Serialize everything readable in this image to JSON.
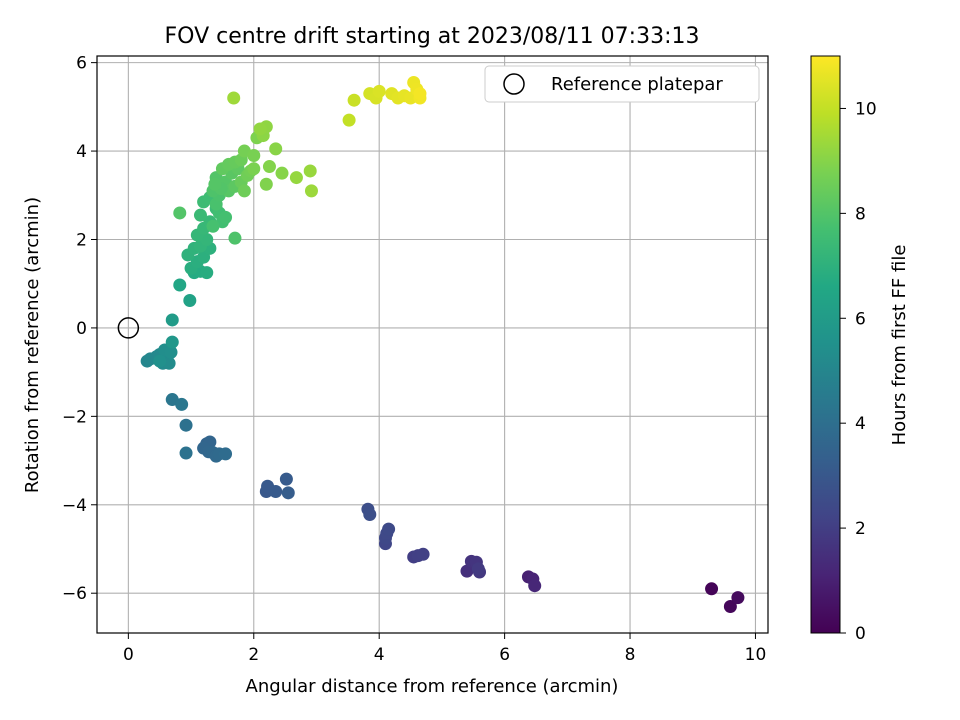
{
  "chart_data": {
    "type": "scatter",
    "title": "FOV centre drift starting at 2023/08/11 07:33:13",
    "xlabel": "Angular distance from reference (arcmin)",
    "ylabel": "Rotation from reference (arcmin)",
    "xlim": [
      -0.5,
      10.2
    ],
    "ylim": [
      -6.9,
      6.15
    ],
    "xticks": [
      0,
      2,
      4,
      6,
      8,
      10
    ],
    "yticks": [
      -6,
      -4,
      -2,
      0,
      2,
      4,
      6
    ],
    "grid": true,
    "legend": {
      "position": "top-right",
      "entries": [
        "Reference platepar"
      ]
    },
    "reference_point": {
      "x": 0,
      "y": 0,
      "name": "Reference platepar"
    },
    "colorbar": {
      "label": "Hours from first FF file",
      "range": [
        0,
        11
      ],
      "ticks": [
        0,
        2,
        4,
        6,
        8,
        10
      ],
      "colormap": "viridis"
    },
    "points": [
      [
        9.3,
        -5.9,
        0.1
      ],
      [
        9.6,
        -6.3,
        0.2
      ],
      [
        9.72,
        -6.1,
        0.3
      ],
      [
        6.38,
        -5.63,
        1.0
      ],
      [
        6.45,
        -5.68,
        1.1
      ],
      [
        6.48,
        -5.83,
        1.2
      ],
      [
        5.4,
        -5.5,
        1.5
      ],
      [
        5.47,
        -5.28,
        1.6
      ],
      [
        5.55,
        -5.3,
        1.7
      ],
      [
        5.6,
        -5.52,
        1.8
      ],
      [
        5.58,
        -5.45,
        1.85
      ],
      [
        4.55,
        -5.18,
        2.0
      ],
      [
        4.62,
        -5.15,
        2.05
      ],
      [
        4.7,
        -5.12,
        2.1
      ],
      [
        4.1,
        -4.88,
        2.3
      ],
      [
        4.1,
        -4.75,
        2.35
      ],
      [
        4.12,
        -4.65,
        2.4
      ],
      [
        4.15,
        -4.55,
        2.45
      ],
      [
        3.82,
        -4.1,
        2.6
      ],
      [
        3.85,
        -4.22,
        2.65
      ],
      [
        2.2,
        -3.7,
        3.0
      ],
      [
        2.22,
        -3.58,
        3.05
      ],
      [
        2.35,
        -3.7,
        3.1
      ],
      [
        2.52,
        -3.42,
        3.15
      ],
      [
        2.55,
        -3.73,
        3.2
      ],
      [
        1.25,
        -2.62,
        3.5
      ],
      [
        1.3,
        -2.58,
        3.55
      ],
      [
        1.2,
        -2.72,
        3.6
      ],
      [
        1.28,
        -2.8,
        3.65
      ],
      [
        1.35,
        -2.82,
        3.7
      ],
      [
        1.4,
        -2.9,
        3.75
      ],
      [
        1.45,
        -2.85,
        3.8
      ],
      [
        1.55,
        -2.85,
        3.85
      ],
      [
        0.92,
        -2.2,
        4.1
      ],
      [
        0.92,
        -2.83,
        4.15
      ],
      [
        0.7,
        -1.62,
        4.3
      ],
      [
        0.85,
        -1.73,
        4.35
      ],
      [
        0.3,
        -0.75,
        5.0
      ],
      [
        0.35,
        -0.7,
        5.05
      ],
      [
        0.45,
        -0.65,
        5.1
      ],
      [
        0.5,
        -0.6,
        5.15
      ],
      [
        0.55,
        -0.8,
        5.2
      ],
      [
        0.62,
        -0.72,
        5.25
      ],
      [
        0.65,
        -0.8,
        5.3
      ],
      [
        0.58,
        -0.5,
        5.35
      ],
      [
        0.68,
        -0.55,
        5.4
      ],
      [
        0.5,
        -0.75,
        5.45
      ],
      [
        0.7,
        -0.32,
        5.8
      ],
      [
        0.7,
        0.18,
        6.0
      ],
      [
        0.98,
        0.62,
        6.3
      ],
      [
        0.82,
        0.97,
        6.5
      ],
      [
        1.05,
        1.25,
        6.7
      ],
      [
        1.15,
        1.28,
        6.75
      ],
      [
        1.25,
        1.25,
        6.8
      ],
      [
        1.0,
        1.35,
        6.85
      ],
      [
        1.1,
        1.5,
        6.9
      ],
      [
        1.2,
        1.6,
        6.95
      ],
      [
        1.3,
        1.8,
        7.0
      ],
      [
        0.95,
        1.65,
        7.05
      ],
      [
        1.05,
        1.8,
        7.1
      ],
      [
        1.15,
        1.85,
        7.15
      ],
      [
        1.25,
        2.0,
        7.2
      ],
      [
        1.1,
        2.1,
        7.25
      ],
      [
        1.2,
        2.25,
        7.3
      ],
      [
        1.3,
        2.4,
        7.35
      ],
      [
        1.15,
        2.55,
        7.4
      ],
      [
        1.4,
        2.7,
        7.45
      ],
      [
        1.2,
        2.85,
        7.5
      ],
      [
        1.3,
        2.95,
        7.55
      ],
      [
        1.45,
        2.6,
        7.6
      ],
      [
        1.5,
        2.4,
        7.65
      ],
      [
        1.55,
        2.5,
        7.7
      ],
      [
        1.35,
        2.3,
        7.75
      ],
      [
        1.4,
        2.8,
        7.8
      ],
      [
        1.45,
        3.0,
        7.85
      ],
      [
        1.35,
        3.1,
        7.9
      ],
      [
        1.5,
        3.2,
        7.95
      ],
      [
        1.4,
        3.4,
        8.0
      ],
      [
        1.55,
        3.3,
        8.05
      ],
      [
        1.6,
        3.1,
        8.1
      ],
      [
        1.65,
        3.5,
        8.15
      ],
      [
        1.7,
        3.2,
        8.2
      ],
      [
        1.75,
        3.6,
        8.25
      ],
      [
        1.5,
        3.6,
        8.3
      ],
      [
        1.6,
        3.7,
        8.35
      ],
      [
        0.82,
        2.6,
        8.0
      ],
      [
        1.7,
        2.03,
        7.9
      ],
      [
        1.48,
        3.15,
        8.0
      ],
      [
        1.38,
        3.25,
        8.05
      ],
      [
        1.7,
        3.75,
        8.4
      ],
      [
        1.8,
        3.3,
        8.45
      ],
      [
        1.8,
        3.8,
        8.5
      ],
      [
        1.85,
        3.1,
        8.55
      ],
      [
        1.9,
        3.45,
        8.6
      ],
      [
        1.95,
        3.55,
        8.65
      ],
      [
        1.85,
        4.0,
        8.7
      ],
      [
        2.0,
        3.9,
        8.75
      ],
      [
        2.0,
        3.6,
        8.8
      ],
      [
        2.05,
        4.3,
        8.85
      ],
      [
        2.2,
        3.25,
        8.9
      ],
      [
        2.25,
        3.65,
        8.95
      ],
      [
        2.45,
        3.5,
        9.0
      ],
      [
        2.35,
        4.05,
        9.05
      ],
      [
        2.15,
        4.35,
        9.1
      ],
      [
        2.2,
        4.55,
        9.15
      ],
      [
        2.1,
        4.5,
        9.2
      ],
      [
        2.68,
        3.4,
        9.25
      ],
      [
        2.9,
        3.55,
        9.3
      ],
      [
        2.92,
        3.1,
        9.35
      ],
      [
        1.68,
        5.2,
        9.4
      ],
      [
        3.52,
        4.7,
        10.0
      ],
      [
        3.6,
        5.15,
        10.1
      ],
      [
        3.85,
        5.3,
        10.3
      ],
      [
        3.95,
        5.2,
        10.35
      ],
      [
        4.0,
        5.35,
        10.4
      ],
      [
        4.2,
        5.3,
        10.5
      ],
      [
        4.3,
        5.2,
        10.55
      ],
      [
        4.4,
        5.25,
        10.6
      ],
      [
        4.5,
        5.2,
        10.65
      ],
      [
        4.55,
        5.55,
        10.7
      ],
      [
        4.6,
        5.4,
        10.75
      ],
      [
        4.65,
        5.2,
        10.8
      ],
      [
        4.65,
        5.3,
        10.85
      ]
    ]
  }
}
